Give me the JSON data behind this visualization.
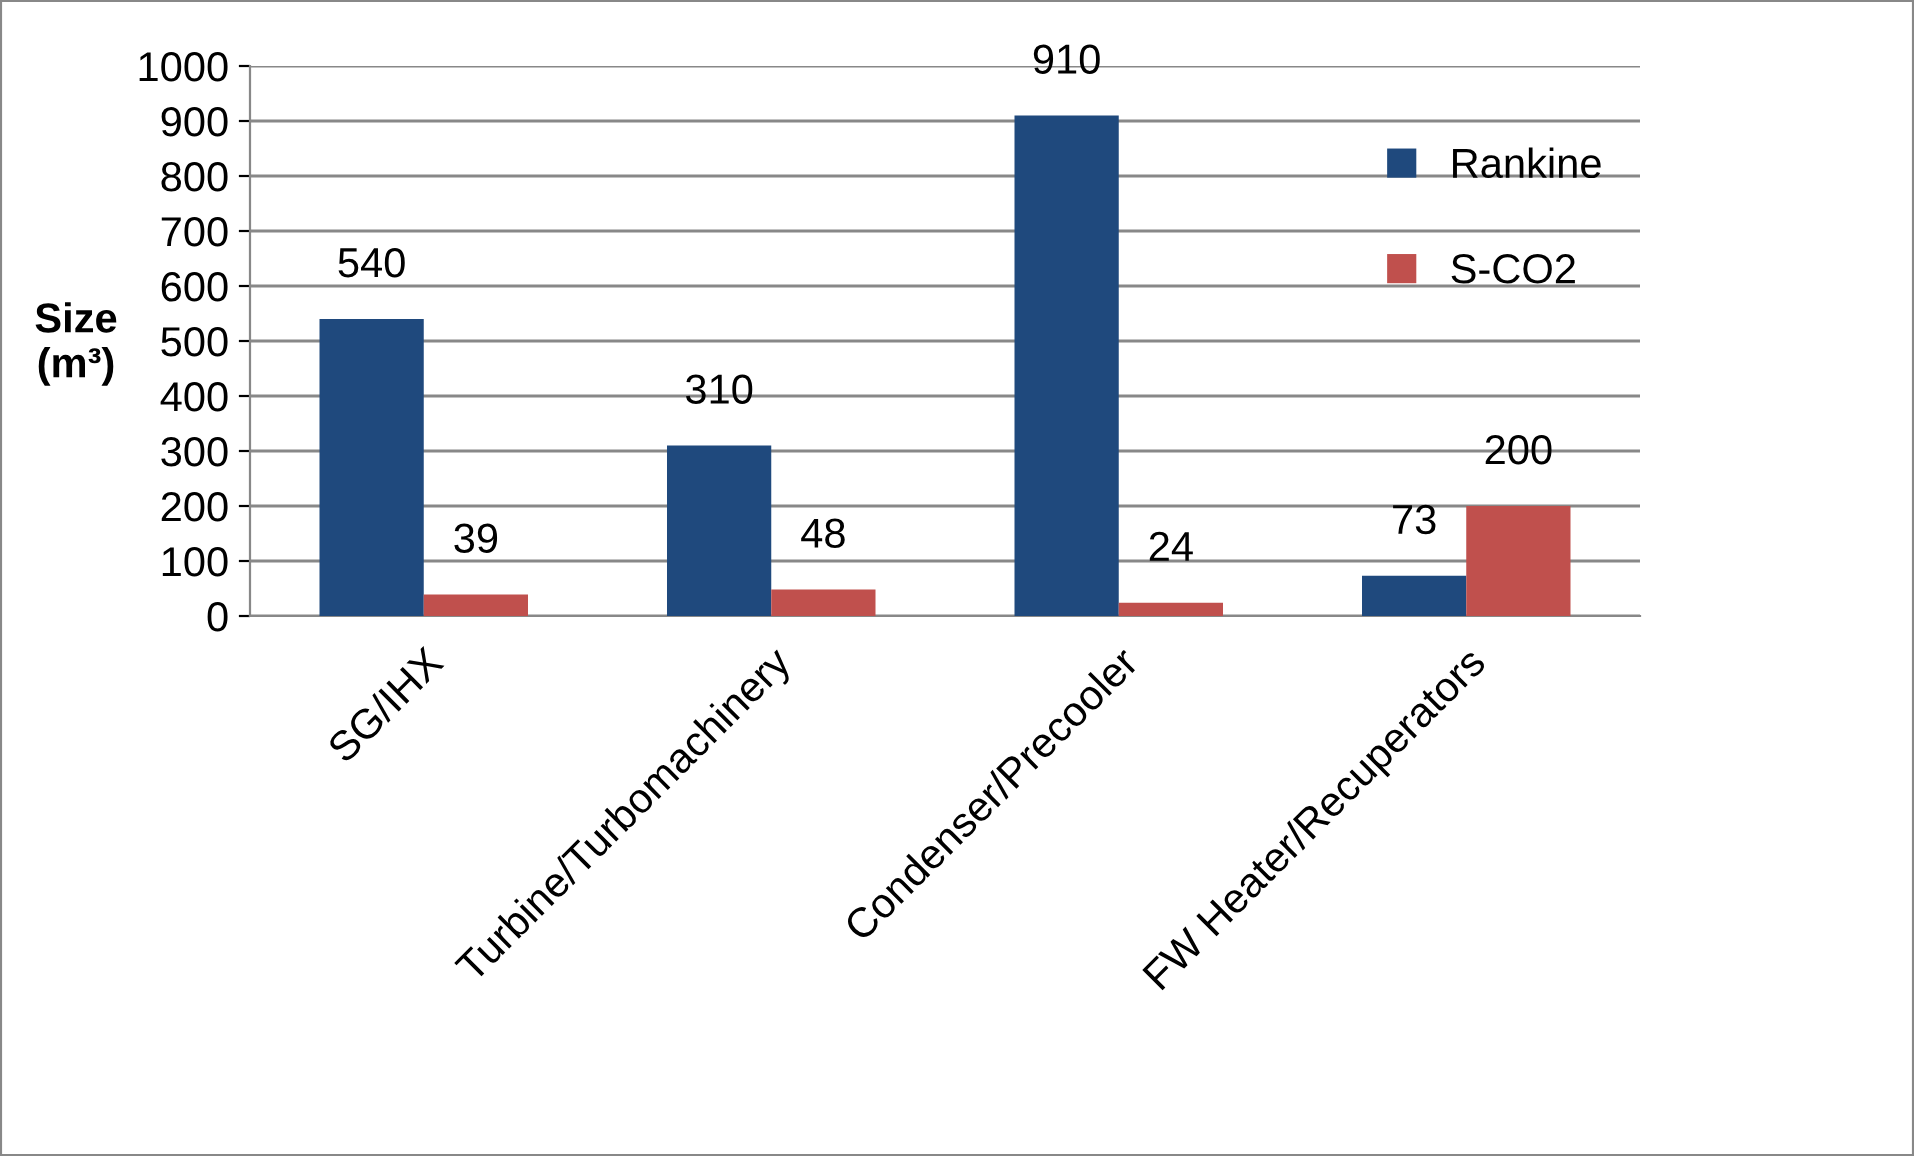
{
  "chart_data": {
    "type": "bar",
    "ylabel": "Size\n(m³)",
    "categories": [
      "SG/IHX",
      "Turbine/Turbomachinery",
      "Condenser/Precooler",
      "FW Heater/Recuperators"
    ],
    "series": [
      {
        "name": "Rankine",
        "color": "#1f497d",
        "values": [
          540,
          310,
          910,
          73
        ]
      },
      {
        "name": "S-CO2",
        "color": "#c0504d",
        "values": [
          39,
          48,
          24,
          200
        ]
      }
    ],
    "ylim": [
      0,
      1000
    ],
    "yticks": [
      0,
      100,
      200,
      300,
      400,
      500,
      600,
      700,
      800,
      900,
      1000
    ],
    "grid": "y",
    "legend": "top right",
    "data_labels": true
  }
}
